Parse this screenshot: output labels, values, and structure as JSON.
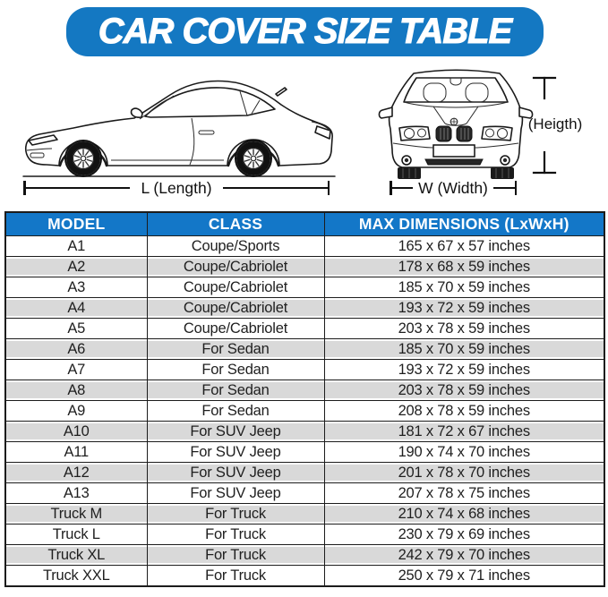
{
  "banner": {
    "title": "CAR COVER SIZE TABLE"
  },
  "diagram": {
    "length_label": "L (Length)",
    "width_label": "W (Width)",
    "height_label": "(Heigth)"
  },
  "table": {
    "columns": [
      "MODEL",
      "CLASS",
      "MAX DIMENSIONS (LxWxH)"
    ],
    "rows": [
      {
        "model": "A1",
        "class": "Coupe/Sports",
        "dimensions": "165 x 67 x 57 inches"
      },
      {
        "model": "A2",
        "class": "Coupe/Cabriolet",
        "dimensions": "178 x 68 x 59 inches"
      },
      {
        "model": "A3",
        "class": "Coupe/Cabriolet",
        "dimensions": "185 x 70 x 59 inches"
      },
      {
        "model": "A4",
        "class": "Coupe/Cabriolet",
        "dimensions": "193 x 72 x 59 inches"
      },
      {
        "model": "A5",
        "class": "Coupe/Cabriolet",
        "dimensions": "203 x 78 x 59 inches"
      },
      {
        "model": "A6",
        "class": "For Sedan",
        "dimensions": "185 x 70 x 59 inches"
      },
      {
        "model": "A7",
        "class": "For Sedan",
        "dimensions": "193 x 72 x 59 inches"
      },
      {
        "model": "A8",
        "class": "For Sedan",
        "dimensions": "203 x 78 x 59 inches"
      },
      {
        "model": "A9",
        "class": "For Sedan",
        "dimensions": "208 x 78 x 59 inches"
      },
      {
        "model": "A10",
        "class": "For SUV Jeep",
        "dimensions": "181 x 72 x 67 inches"
      },
      {
        "model": "A11",
        "class": "For SUV Jeep",
        "dimensions": "190 x 74 x 70 inches"
      },
      {
        "model": "A12",
        "class": "For SUV Jeep",
        "dimensions": "201 x 78 x 70 inches"
      },
      {
        "model": "A13",
        "class": "For SUV Jeep",
        "dimensions": "207 x 78 x 75 inches"
      },
      {
        "model": "Truck M",
        "class": "For Truck",
        "dimensions": "210 x 74 x 68 inches"
      },
      {
        "model": "Truck L",
        "class": "For Truck",
        "dimensions": "230 x 79 x 69 inches"
      },
      {
        "model": "Truck XL",
        "class": "For Truck",
        "dimensions": "242 x 79 x 70 inches"
      },
      {
        "model": "Truck XXL",
        "class": "For Truck",
        "dimensions": "250 x 79 x 71 inches"
      }
    ]
  },
  "colors": {
    "banner_blue": "#1478c2",
    "header_blue": "#1377c8",
    "alt_row_gray": "#d9d9d9",
    "border_dark": "#1c1c1c"
  },
  "chart_data": {
    "type": "table",
    "title": "CAR COVER SIZE TABLE",
    "columns": [
      "MODEL",
      "CLASS",
      "MAX DIMENSIONS (LxWxH)"
    ],
    "rows": [
      [
        "A1",
        "Coupe/Sports",
        "165 x 67 x 57 inches"
      ],
      [
        "A2",
        "Coupe/Cabriolet",
        "178 x 68 x 59 inches"
      ],
      [
        "A3",
        "Coupe/Cabriolet",
        "185 x 70 x 59 inches"
      ],
      [
        "A4",
        "Coupe/Cabriolet",
        "193 x 72 x 59 inches"
      ],
      [
        "A5",
        "Coupe/Cabriolet",
        "203 x 78 x 59 inches"
      ],
      [
        "A6",
        "For Sedan",
        "185 x 70 x 59 inches"
      ],
      [
        "A7",
        "For Sedan",
        "193 x 72 x 59 inches"
      ],
      [
        "A8",
        "For Sedan",
        "203 x 78 x 59 inches"
      ],
      [
        "A9",
        "For Sedan",
        "208 x 78 x 59 inches"
      ],
      [
        "A10",
        "For SUV Jeep",
        "181 x 72 x 67 inches"
      ],
      [
        "A11",
        "For SUV Jeep",
        "190 x 74 x 70 inches"
      ],
      [
        "A12",
        "For SUV Jeep",
        "201 x 78 x 70 inches"
      ],
      [
        "A13",
        "For SUV Jeep",
        "207 x 78 x 75 inches"
      ],
      [
        "Truck M",
        "For Truck",
        "210 x 74 x 68 inches"
      ],
      [
        "Truck L",
        "For Truck",
        "230 x 79 x 69 inches"
      ],
      [
        "Truck XL",
        "For Truck",
        "242 x 79 x 70 inches"
      ],
      [
        "Truck XXL",
        "For Truck",
        "250 x 79 x 71 inches"
      ]
    ]
  }
}
